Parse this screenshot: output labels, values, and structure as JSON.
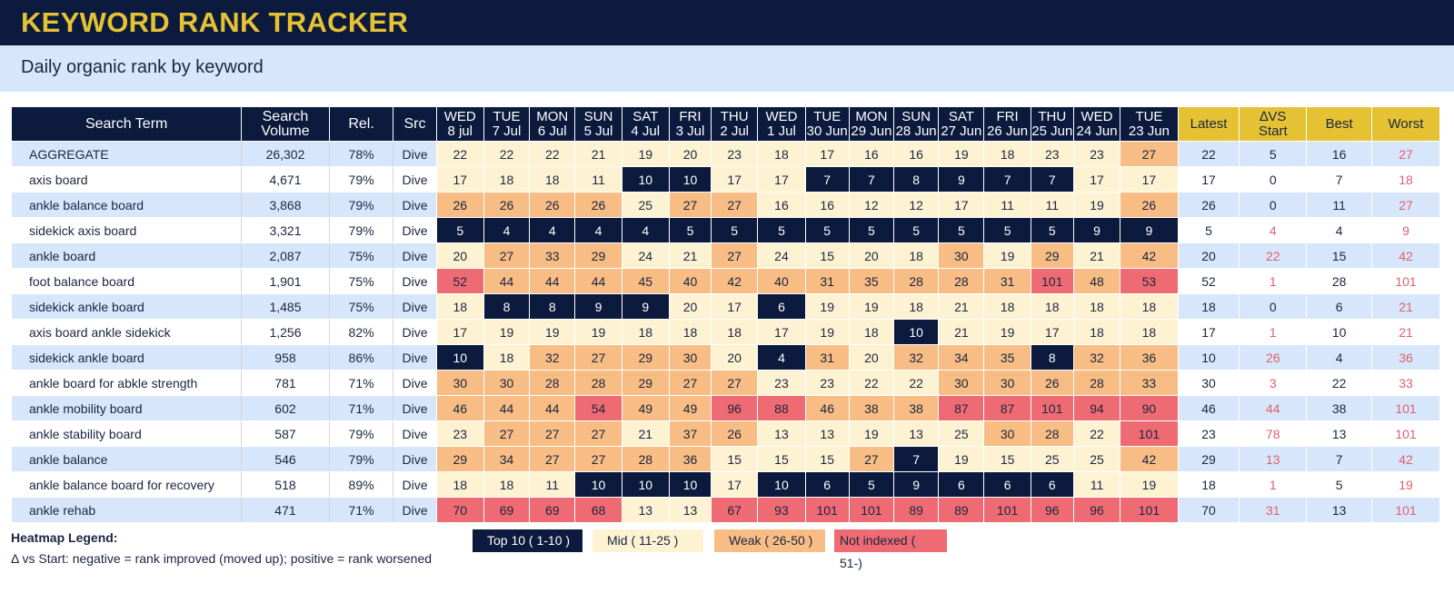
{
  "app": {
    "title": "KEYWORD RANK TRACKER",
    "subtitle": "Daily organic rank by keyword"
  },
  "colors": {
    "header_bg": "#0b1a3d",
    "title_gold": "#e5c234",
    "subtitle_bg": "#d7e6fb",
    "top10": "#0b1a3d",
    "mid": "#fdf3d3",
    "weak": "#f7bd84",
    "not_indexed": "#ef6b73"
  },
  "table": {
    "headers": {
      "term": "Search Term",
      "volume_1": "Search",
      "volume_2": "Volume",
      "rel": "Rel.",
      "src": "Src",
      "latest": "Latest",
      "delta_1": "∆VS",
      "delta_2": "Start",
      "best": "Best",
      "worst": "Worst"
    },
    "dates": [
      {
        "dow": "WED",
        "date": "8 jul"
      },
      {
        "dow": "TUE",
        "date": "7 Jul"
      },
      {
        "dow": "MON",
        "date": "6 Jul"
      },
      {
        "dow": "SUN",
        "date": "5 Jul"
      },
      {
        "dow": "SAT",
        "date": "4 Jul"
      },
      {
        "dow": "FRI",
        "date": "3 Jul"
      },
      {
        "dow": "THU",
        "date": "2 Jul"
      },
      {
        "dow": "WED",
        "date": "1 Jul"
      },
      {
        "dow": "TUE",
        "date": "30 Jun"
      },
      {
        "dow": "MON",
        "date": "29 Jun"
      },
      {
        "dow": "SUN",
        "date": "28 Jun"
      },
      {
        "dow": "SAT",
        "date": "27 Jun"
      },
      {
        "dow": "FRI",
        "date": "26 Jun"
      },
      {
        "dow": "THU",
        "date": "25 Jun"
      },
      {
        "dow": "WED",
        "date": "24 Jun"
      },
      {
        "dow": "TUE",
        "date": "23 Jun"
      }
    ],
    "rows": [
      {
        "term": "AGGREGATE",
        "volume": "26,302",
        "rel": "78%",
        "src": "Dive",
        "ranks": [
          22,
          22,
          22,
          21,
          19,
          20,
          23,
          18,
          17,
          16,
          16,
          19,
          18,
          23,
          23,
          27
        ],
        "latest": "22",
        "delta": "5",
        "best": "16",
        "worst": "27"
      },
      {
        "term": "axis board",
        "volume": "4,671",
        "rel": "79%",
        "src": "Dive",
        "ranks": [
          17,
          18,
          18,
          11,
          10,
          10,
          17,
          17,
          7,
          7,
          8,
          9,
          7,
          7,
          17,
          17
        ],
        "latest": "17",
        "delta": "0",
        "best": "7",
        "worst": "18"
      },
      {
        "term": "ankle balance board",
        "volume": "3,868",
        "rel": "79%",
        "src": "Dive",
        "ranks": [
          26,
          26,
          26,
          26,
          25,
          27,
          27,
          16,
          16,
          12,
          12,
          17,
          11,
          11,
          19,
          26
        ],
        "latest": "26",
        "delta": "0",
        "best": "11",
        "worst": "27"
      },
      {
        "term": "sidekick axis board",
        "volume": "3,321",
        "rel": "79%",
        "src": "Dive",
        "ranks": [
          5,
          4,
          4,
          4,
          4,
          5,
          5,
          5,
          5,
          5,
          5,
          5,
          5,
          5,
          9,
          9
        ],
        "latest": "5",
        "delta": "4",
        "best": "4",
        "worst": "9"
      },
      {
        "term": "ankle board",
        "volume": "2,087",
        "rel": "75%",
        "src": "Dive",
        "ranks": [
          20,
          27,
          33,
          29,
          24,
          21,
          27,
          24,
          15,
          20,
          18,
          30,
          19,
          29,
          21,
          42
        ],
        "latest": "20",
        "delta": "22",
        "best": "15",
        "worst": "42"
      },
      {
        "term": "foot balance board",
        "volume": "1,901",
        "rel": "75%",
        "src": "Dive",
        "ranks": [
          52,
          44,
          44,
          44,
          45,
          40,
          42,
          40,
          31,
          35,
          28,
          28,
          31,
          101,
          48,
          53
        ],
        "latest": "52",
        "delta": "1",
        "best": "28",
        "worst": "101"
      },
      {
        "term": "sidekick ankle board",
        "volume": "1,485",
        "rel": "75%",
        "src": "Dive",
        "ranks": [
          18,
          8,
          8,
          9,
          9,
          20,
          17,
          6,
          19,
          19,
          18,
          21,
          18,
          18,
          18,
          18
        ],
        "latest": "18",
        "delta": "0",
        "best": "6",
        "worst": "21"
      },
      {
        "term": "axis board ankle sidekick",
        "volume": "1,256",
        "rel": "82%",
        "src": "Dive",
        "ranks": [
          17,
          19,
          19,
          19,
          18,
          18,
          18,
          17,
          19,
          18,
          10,
          21,
          19,
          17,
          18,
          18
        ],
        "latest": "17",
        "delta": "1",
        "best": "10",
        "worst": "21"
      },
      {
        "term": "sidekick ankle board",
        "volume": "958",
        "rel": "86%",
        "src": "Dive",
        "ranks": [
          10,
          18,
          32,
          27,
          29,
          30,
          20,
          4,
          31,
          20,
          32,
          34,
          35,
          8,
          32,
          36
        ],
        "latest": "10",
        "delta": "26",
        "best": "4",
        "worst": "36"
      },
      {
        "term": "ankle board for abkle strength",
        "volume": "781",
        "rel": "71%",
        "src": "Dive",
        "ranks": [
          30,
          30,
          28,
          28,
          29,
          27,
          27,
          23,
          23,
          22,
          22,
          30,
          30,
          26,
          28,
          33
        ],
        "latest": "30",
        "delta": "3",
        "best": "22",
        "worst": "33"
      },
      {
        "term": "ankle mobility board",
        "volume": "602",
        "rel": "71%",
        "src": "Dive",
        "ranks": [
          46,
          44,
          44,
          54,
          49,
          49,
          96,
          88,
          46,
          38,
          38,
          87,
          87,
          101,
          94,
          90
        ],
        "latest": "46",
        "delta": "44",
        "best": "38",
        "worst": "101"
      },
      {
        "term": "ankle stability board",
        "volume": "587",
        "rel": "79%",
        "src": "Dive",
        "ranks": [
          23,
          27,
          27,
          27,
          21,
          37,
          26,
          13,
          13,
          19,
          13,
          25,
          30,
          28,
          22,
          101
        ],
        "latest": "23",
        "delta": "78",
        "best": "13",
        "worst": "101"
      },
      {
        "term": "ankle balance",
        "volume": "546",
        "rel": "79%",
        "src": "Dive",
        "ranks": [
          29,
          34,
          27,
          27,
          28,
          36,
          15,
          15,
          15,
          27,
          7,
          19,
          15,
          25,
          25,
          42
        ],
        "latest": "29",
        "delta": "13",
        "best": "7",
        "worst": "42"
      },
      {
        "term": "ankle balance board for recovery",
        "volume": "518",
        "rel": "89%",
        "src": "Dive",
        "ranks": [
          18,
          18,
          11,
          10,
          10,
          10,
          17,
          10,
          6,
          5,
          9,
          6,
          6,
          6,
          11,
          19
        ],
        "latest": "18",
        "delta": "1",
        "best": "5",
        "worst": "19"
      },
      {
        "term": "ankle rehab",
        "volume": "471",
        "rel": "71%",
        "src": "Dive",
        "ranks": [
          70,
          69,
          69,
          68,
          13,
          13,
          67,
          93,
          101,
          101,
          89,
          89,
          101,
          96,
          96,
          101
        ],
        "latest": "70",
        "delta": "31",
        "best": "13",
        "worst": "101"
      }
    ]
  },
  "legend": {
    "title": "Heatmap Legend:",
    "note": "Δ vs Start: negative = rank improved (moved up); positive = rank worsened",
    "top10": "Top 10 ( 1-10 )",
    "mid": "Mid ( 11-25 )",
    "weak": "Weak ( 26-50 )",
    "not_indexed": "Not indexed ( 51-)"
  }
}
